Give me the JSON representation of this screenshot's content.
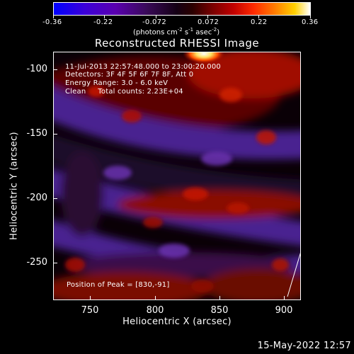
{
  "colorbar": {
    "ticks": [
      "-0.36",
      "-0.22",
      "-0.072",
      "0.072",
      "0.22",
      "0.36"
    ],
    "units_prefix": "(photons cm",
    "units_exp1": "-2",
    "units_mid1": " s",
    "units_exp2": "-1",
    "units_mid2": " asec",
    "units_exp3": "-2",
    "units_suffix": ")"
  },
  "title": "Reconstructed RHESSI Image",
  "info": {
    "time_range": "11-Jul-2013 22:57:48.000 to 23:00:20.000",
    "detectors": "Detectors: 3F 4F 5F 6F 7F 8F, Att 0",
    "energy": "Energy Range: 3.0 - 6.0 keV",
    "clean": "Clean     Total counts: 2.23E+04",
    "peak": "Position of Peak = [830,-91]"
  },
  "axes": {
    "xlabel": "Heliocentric X (arcsec)",
    "ylabel": "Heliocentric Y (arcsec)",
    "xticks": [
      "750",
      "800",
      "850",
      "900"
    ],
    "yticks": [
      "-100",
      "-150",
      "-200",
      "-250"
    ],
    "xlim": [
      722,
      913
    ],
    "ylim": [
      -278,
      -87
    ]
  },
  "peak_position": [
    830,
    -91
  ],
  "timestamp": "15-May-2022 12:57",
  "colors": {
    "background": "#000000",
    "foreground": "#ffffff"
  }
}
